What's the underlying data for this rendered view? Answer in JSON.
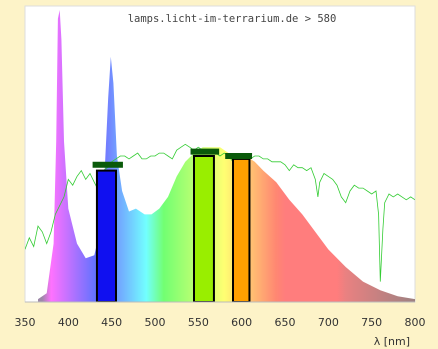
{
  "chart_data": {
    "type": "area",
    "title": "lamps.licht-im-terrarium.de > 580",
    "xlabel": "λ [nm]",
    "ylabel": "",
    "xlim": [
      350,
      800
    ],
    "ylim": [
      0,
      1
    ],
    "x_ticks": [
      350,
      400,
      450,
      500,
      550,
      600,
      650,
      700,
      750,
      800
    ],
    "grid": false,
    "legend": "none",
    "series": [
      {
        "kind": "lamp-spectrum",
        "points": [
          [
            365,
            0.01
          ],
          [
            375,
            0.03
          ],
          [
            383,
            0.2
          ],
          [
            386,
            0.55
          ],
          [
            388,
            0.97
          ],
          [
            390,
            1.0
          ],
          [
            392,
            0.9
          ],
          [
            395,
            0.55
          ],
          [
            400,
            0.32
          ],
          [
            410,
            0.2
          ],
          [
            420,
            0.15
          ],
          [
            430,
            0.16
          ],
          [
            437,
            0.25
          ],
          [
            442,
            0.45
          ],
          [
            446,
            0.7
          ],
          [
            449,
            0.84
          ],
          [
            452,
            0.75
          ],
          [
            456,
            0.5
          ],
          [
            462,
            0.38
          ],
          [
            470,
            0.31
          ],
          [
            478,
            0.32
          ],
          [
            488,
            0.3
          ],
          [
            496,
            0.3
          ],
          [
            505,
            0.32
          ],
          [
            515,
            0.36
          ],
          [
            525,
            0.43
          ],
          [
            535,
            0.48
          ],
          [
            545,
            0.51
          ],
          [
            555,
            0.53
          ],
          [
            565,
            0.53
          ],
          [
            575,
            0.53
          ],
          [
            585,
            0.51
          ],
          [
            595,
            0.5
          ],
          [
            605,
            0.5
          ],
          [
            615,
            0.48
          ],
          [
            625,
            0.45
          ],
          [
            640,
            0.41
          ],
          [
            655,
            0.35
          ],
          [
            670,
            0.3
          ],
          [
            685,
            0.24
          ],
          [
            700,
            0.18
          ],
          [
            720,
            0.12
          ],
          [
            740,
            0.07
          ],
          [
            760,
            0.04
          ],
          [
            780,
            0.02
          ],
          [
            800,
            0.01
          ]
        ]
      },
      {
        "kind": "daylight-reference",
        "color": "#33cc33",
        "points": [
          [
            350,
            0.18
          ],
          [
            355,
            0.22
          ],
          [
            360,
            0.19
          ],
          [
            365,
            0.26
          ],
          [
            370,
            0.24
          ],
          [
            375,
            0.2
          ],
          [
            380,
            0.24
          ],
          [
            385,
            0.3
          ],
          [
            390,
            0.33
          ],
          [
            395,
            0.36
          ],
          [
            400,
            0.42
          ],
          [
            405,
            0.4
          ],
          [
            410,
            0.43
          ],
          [
            415,
            0.45
          ],
          [
            420,
            0.42
          ],
          [
            425,
            0.44
          ],
          [
            430,
            0.41
          ],
          [
            435,
            0.38
          ],
          [
            440,
            0.45
          ],
          [
            445,
            0.46
          ],
          [
            450,
            0.48
          ],
          [
            455,
            0.49
          ],
          [
            460,
            0.5
          ],
          [
            465,
            0.5
          ],
          [
            470,
            0.49
          ],
          [
            475,
            0.5
          ],
          [
            480,
            0.51
          ],
          [
            485,
            0.49
          ],
          [
            490,
            0.49
          ],
          [
            495,
            0.5
          ],
          [
            500,
            0.5
          ],
          [
            505,
            0.51
          ],
          [
            510,
            0.51
          ],
          [
            515,
            0.5
          ],
          [
            520,
            0.49
          ],
          [
            525,
            0.52
          ],
          [
            530,
            0.53
          ],
          [
            535,
            0.54
          ],
          [
            540,
            0.53
          ],
          [
            545,
            0.52
          ],
          [
            550,
            0.53
          ],
          [
            555,
            0.52
          ],
          [
            560,
            0.51
          ],
          [
            565,
            0.52
          ],
          [
            570,
            0.51
          ],
          [
            575,
            0.5
          ],
          [
            580,
            0.51
          ],
          [
            585,
            0.5
          ],
          [
            590,
            0.48
          ],
          [
            595,
            0.49
          ],
          [
            600,
            0.5
          ],
          [
            605,
            0.5
          ],
          [
            610,
            0.49
          ],
          [
            615,
            0.5
          ],
          [
            620,
            0.5
          ],
          [
            625,
            0.49
          ],
          [
            630,
            0.49
          ],
          [
            635,
            0.48
          ],
          [
            640,
            0.48
          ],
          [
            645,
            0.48
          ],
          [
            650,
            0.47
          ],
          [
            655,
            0.45
          ],
          [
            660,
            0.47
          ],
          [
            665,
            0.46
          ],
          [
            670,
            0.46
          ],
          [
            675,
            0.45
          ],
          [
            680,
            0.46
          ],
          [
            685,
            0.42
          ],
          [
            688,
            0.36
          ],
          [
            690,
            0.41
          ],
          [
            695,
            0.44
          ],
          [
            700,
            0.43
          ],
          [
            705,
            0.42
          ],
          [
            710,
            0.4
          ],
          [
            715,
            0.36
          ],
          [
            720,
            0.34
          ],
          [
            725,
            0.38
          ],
          [
            730,
            0.4
          ],
          [
            735,
            0.39
          ],
          [
            740,
            0.39
          ],
          [
            745,
            0.38
          ],
          [
            750,
            0.37
          ],
          [
            755,
            0.38
          ],
          [
            758,
            0.3
          ],
          [
            760,
            0.07
          ],
          [
            763,
            0.25
          ],
          [
            765,
            0.34
          ],
          [
            770,
            0.37
          ],
          [
            775,
            0.36
          ],
          [
            780,
            0.37
          ],
          [
            785,
            0.36
          ],
          [
            790,
            0.35
          ],
          [
            795,
            0.36
          ],
          [
            800,
            0.35
          ]
        ]
      }
    ],
    "bars": [
      {
        "x0": 433,
        "x1": 455,
        "value": 0.45,
        "color": "#1010f0",
        "cap_x0": 428,
        "cap_x1": 463,
        "cap_value": 0.47
      },
      {
        "x0": 545,
        "x1": 568,
        "value": 0.5,
        "color": "#99ee00",
        "cap_x0": 541,
        "cap_x1": 574,
        "cap_value": 0.515
      },
      {
        "x0": 590,
        "x1": 609,
        "value": 0.49,
        "color": "#ffa000",
        "cap_x0": 581,
        "cap_x1": 612,
        "cap_value": 0.5
      }
    ]
  }
}
